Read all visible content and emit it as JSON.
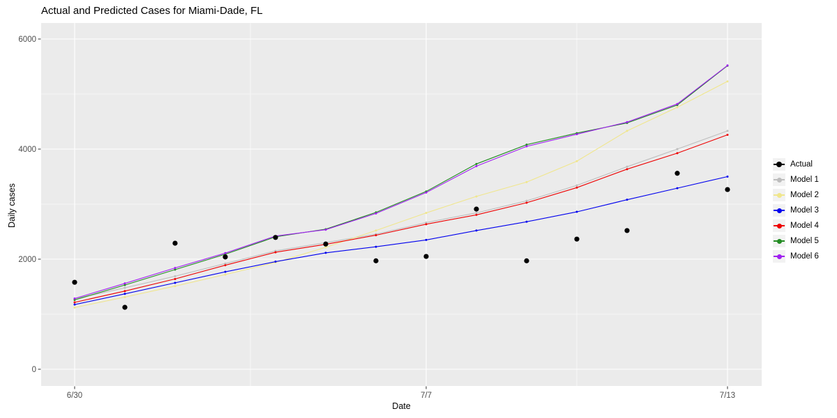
{
  "title": "Actual and Predicted Cases for Miami-Dade, FL",
  "chart_data": {
    "type": "line",
    "title": "Actual and Predicted Cases for Miami-Dade, FL",
    "xlabel": "Date",
    "ylabel": "Daily cases",
    "x_tick_labels": [
      "6/30",
      "7/7",
      "7/13"
    ],
    "x_tick_days": [
      0,
      7,
      13
    ],
    "x_minor_days": [
      3.5,
      10
    ],
    "y_ticks": [
      0,
      2000,
      4000,
      6000
    ],
    "y_minor_ticks": [
      1000,
      3000,
      5000
    ],
    "ylim": [
      -300,
      6290
    ],
    "grid": "on",
    "legend_position": "right",
    "panel_bg": "#EBEBEB",
    "grid_color": "#FFFFFF",
    "tick_label_color": "#4D4D4D",
    "dates": [
      "6/30",
      "7/1",
      "7/2",
      "7/3",
      "7/4",
      "7/5",
      "7/6",
      "7/7",
      "7/8",
      "7/9",
      "7/10",
      "7/11",
      "7/12",
      "7/13"
    ],
    "actual": {
      "name": "Actual",
      "color": "#000000",
      "values": [
        1580,
        1125,
        2290,
        2040,
        2395,
        2275,
        1970,
        2050,
        2910,
        1970,
        2365,
        2520,
        3560,
        3265
      ]
    },
    "series": [
      {
        "name": "Model 1",
        "color": "#BDBDBD",
        "values": [
          1280,
          1480,
          1690,
          1920,
          2150,
          2300,
          2455,
          2665,
          2840,
          3060,
          3340,
          3680,
          4000,
          4330
        ]
      },
      {
        "name": "Model 2",
        "color": "#F0E68C",
        "values": [
          1120,
          1310,
          1510,
          1720,
          1940,
          2215,
          2520,
          2840,
          3140,
          3400,
          3780,
          4330,
          4760,
          5230
        ]
      },
      {
        "name": "Model 3",
        "color": "#0000EE",
        "values": [
          1175,
          1370,
          1570,
          1770,
          1955,
          2115,
          2225,
          2350,
          2520,
          2680,
          2860,
          3080,
          3290,
          3500
        ]
      },
      {
        "name": "Model 4",
        "color": "#EE0000",
        "values": [
          1215,
          1420,
          1640,
          1890,
          2125,
          2270,
          2435,
          2635,
          2805,
          3025,
          3300,
          3635,
          3925,
          4260
        ]
      },
      {
        "name": "Model 5",
        "color": "#228B22",
        "values": [
          1260,
          1530,
          1810,
          2090,
          2405,
          2545,
          2850,
          3230,
          3730,
          4080,
          4290,
          4475,
          4800,
          5515
        ]
      },
      {
        "name": "Model 6",
        "color": "#A020F0",
        "values": [
          1285,
          1560,
          1840,
          2110,
          2420,
          2535,
          2830,
          3210,
          3690,
          4050,
          4270,
          4490,
          4820,
          5520
        ]
      }
    ]
  }
}
